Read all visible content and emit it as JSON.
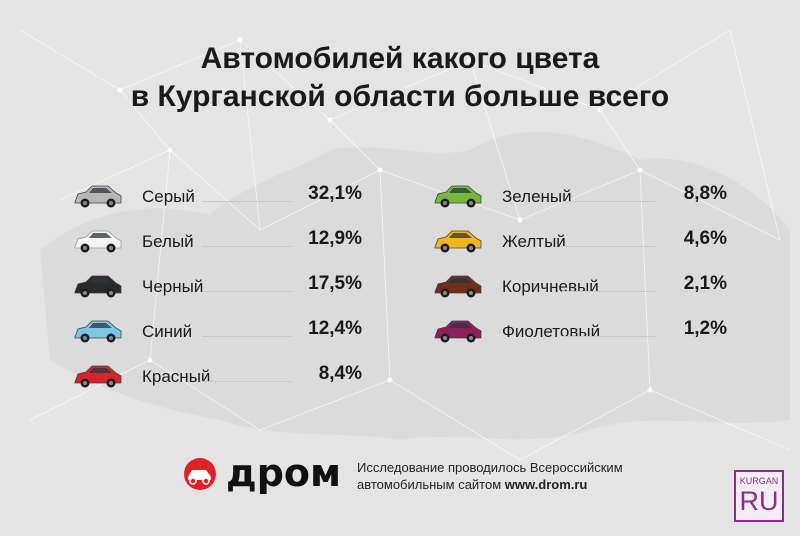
{
  "title": {
    "line1": "Автомобилей какого цвета",
    "line2": "в Курганской области больше всего"
  },
  "chart_data": {
    "type": "table",
    "title": "Автомобилей какого цвета в Курганской области больше всего",
    "columns": [
      {
        "items": [
          {
            "label": "Серый",
            "value_text": "32,1%",
            "value": 32.1,
            "color": "#b7b7b7"
          },
          {
            "label": "Белый",
            "value_text": "12,9%",
            "value": 12.9,
            "color": "#f4f4f4"
          },
          {
            "label": "Черный",
            "value_text": "17,5%",
            "value": 17.5,
            "color": "#2a2a2a"
          },
          {
            "label": "Синий",
            "value_text": "12,4%",
            "value": 12.4,
            "color": "#7cc6e6"
          },
          {
            "label": "Красный",
            "value_text": "8,4%",
            "value": 8.4,
            "color": "#d8232a"
          }
        ]
      },
      {
        "items": [
          {
            "label": "Зеленый",
            "value_text": "8,8%",
            "value": 8.8,
            "color": "#76b83a"
          },
          {
            "label": "Желтый",
            "value_text": "4,6%",
            "value": 4.6,
            "color": "#f3b51c"
          },
          {
            "label": "Коричневый",
            "value_text": "2,1%",
            "value": 2.1,
            "color": "#6e2e1a"
          },
          {
            "label": "Фиолетовый",
            "value_text": "1,2%",
            "value": 1.2,
            "color": "#8c1f5e"
          }
        ]
      }
    ]
  },
  "footer": {
    "brand": "дром",
    "note_line1": "Исследование проводилось Всероссийским",
    "note_line2_prefix": "автомобильным сайтом",
    "note_line2_site": "www.drom.ru",
    "badge_top": "KURGAN",
    "badge_main": "RU",
    "brand_color": "#e01f26",
    "badge_color": "#8a2b8f"
  }
}
